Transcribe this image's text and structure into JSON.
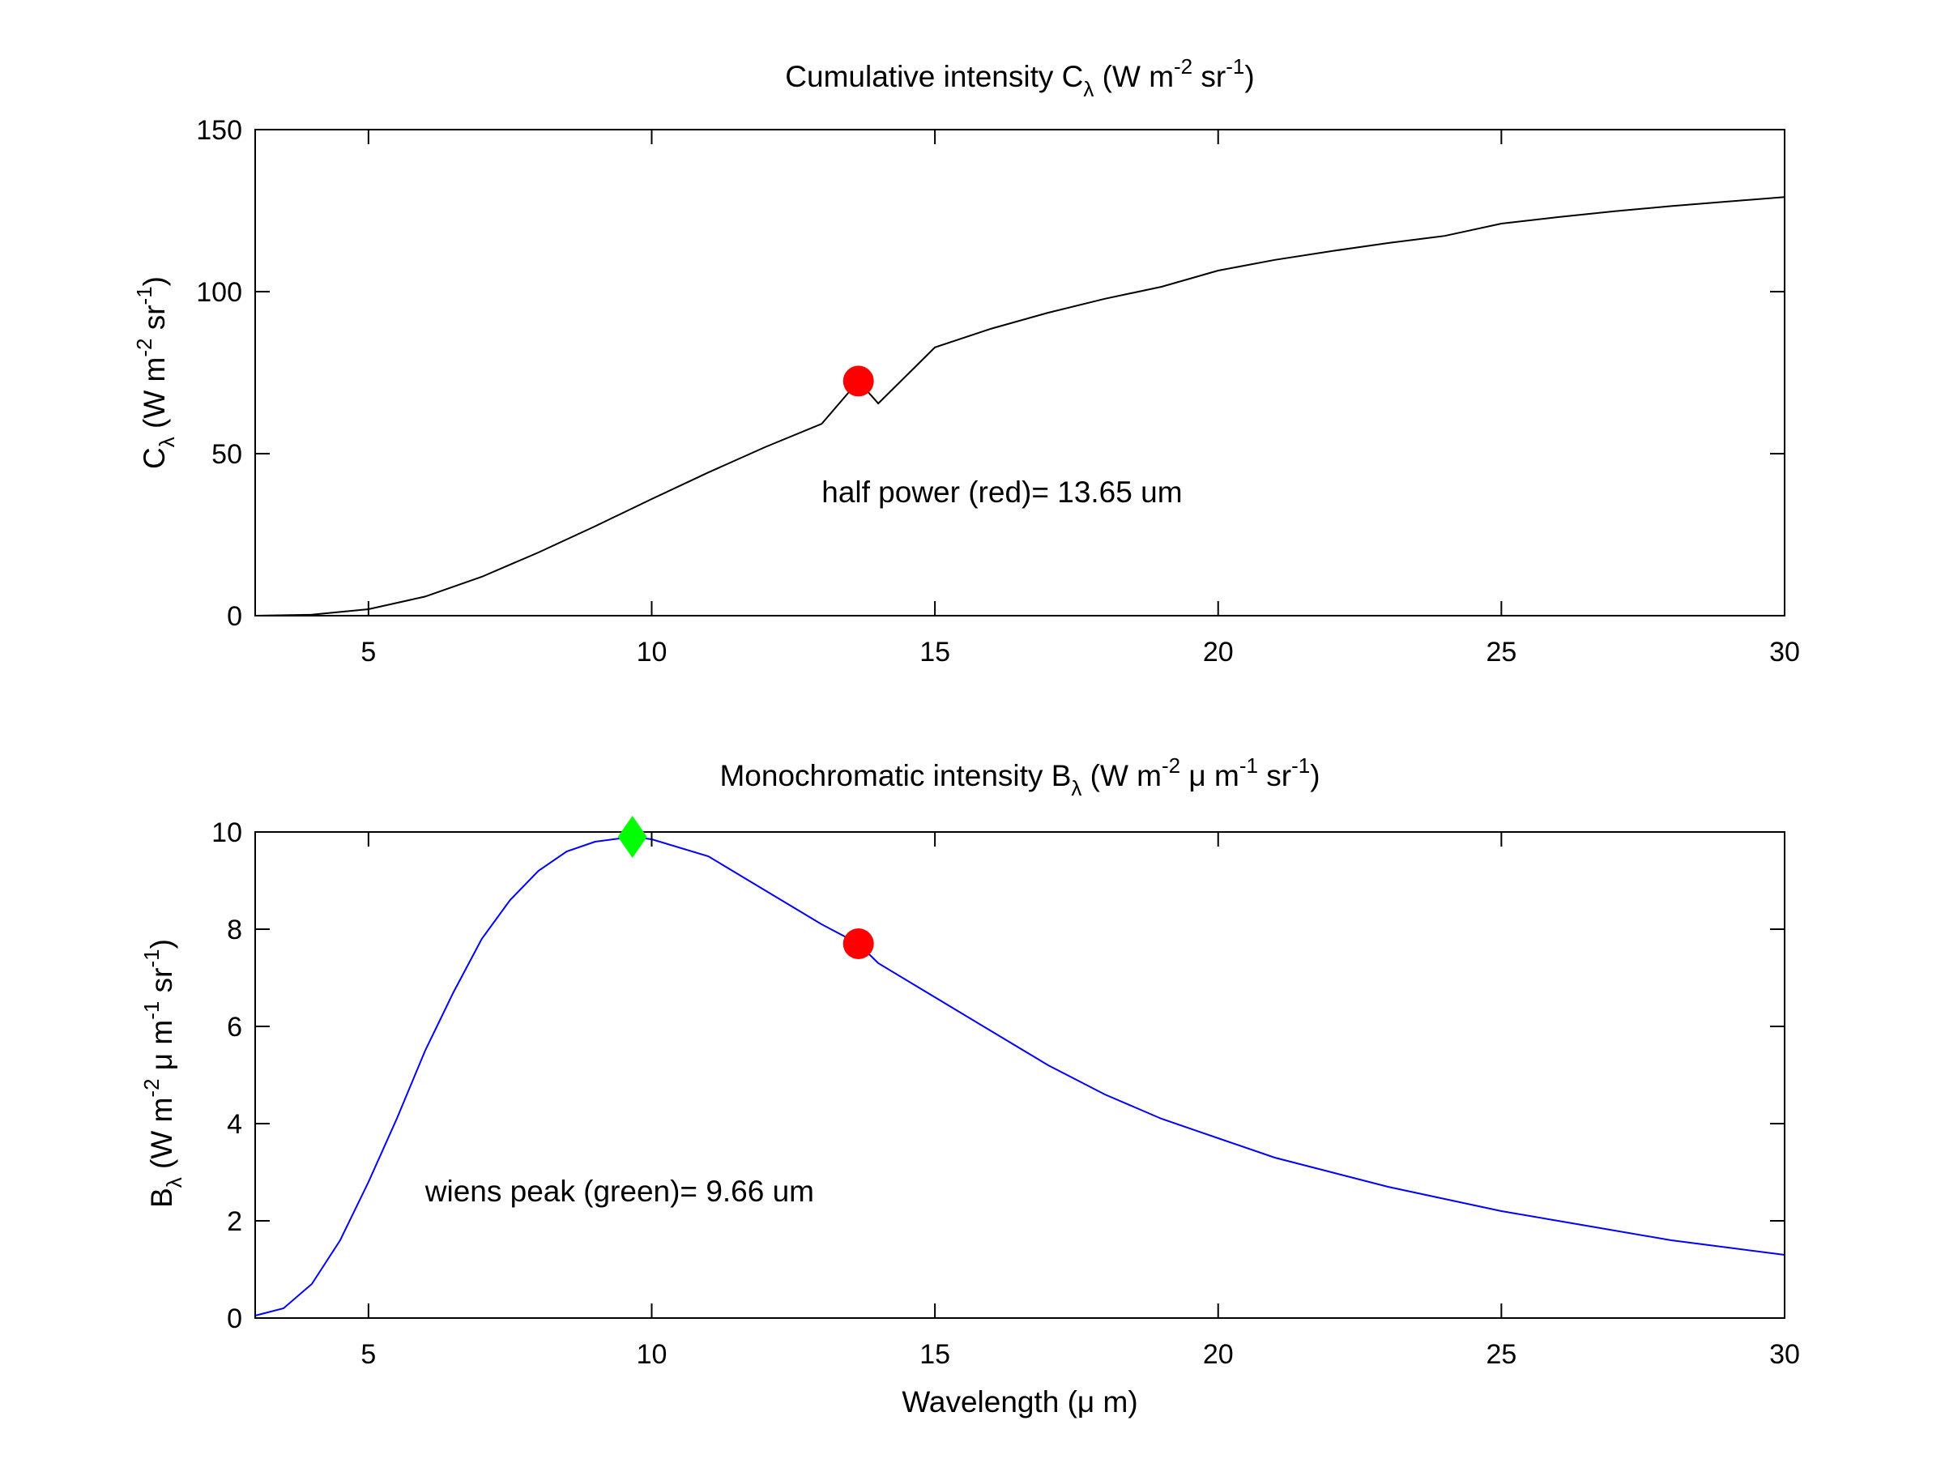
{
  "figure": {
    "background": "#ffffff"
  },
  "chart_data": [
    {
      "type": "line",
      "title": {
        "main": "Cumulative intensity C",
        "sub": "λ",
        "units_prefix": " (W m",
        "exp1": "-2",
        "units_mid": " sr",
        "exp2": "-1",
        "units_suffix": ")"
      },
      "ylabel": {
        "main": "C",
        "sub": "λ",
        "units_prefix": " (W m",
        "exp1": "-2",
        "units_mid": " sr",
        "exp2": "-1",
        "units_suffix": ")"
      },
      "xlabel": "",
      "xlim": [
        3,
        30
      ],
      "ylim": [
        0,
        150
      ],
      "xticks": [
        5,
        10,
        15,
        20,
        25,
        30
      ],
      "yticks": [
        0,
        50,
        100,
        150
      ],
      "grid": false,
      "series": [
        {
          "color": "#000000",
          "x": [
            3,
            4,
            5,
            6,
            7,
            8,
            9,
            10,
            11,
            12,
            13,
            13.65,
            14,
            15,
            16,
            17,
            18,
            19,
            20,
            21,
            22,
            23,
            24,
            25,
            26,
            27,
            28,
            29,
            30
          ],
          "y": [
            0,
            0.3,
            2.0,
            5.9,
            12.0,
            19.5,
            27.6,
            36.0,
            44.2,
            52.0,
            59.2,
            72.4,
            65.5,
            82.8,
            88.6,
            93.5,
            97.8,
            101.5,
            106.5,
            109.8,
            112.5,
            115.0,
            117.2,
            121.0,
            123.0,
            124.8,
            126.4,
            127.8,
            129.2
          ]
        }
      ],
      "markers": [
        {
          "name": "half power",
          "shape": "circle",
          "color": "#ff0000",
          "x": 13.65,
          "y": 72.4
        }
      ],
      "annotations": [
        {
          "text": "half power (red)= 13.65 um",
          "x": 13.0,
          "y": 35
        }
      ]
    },
    {
      "type": "line",
      "title": {
        "main": "Monochromatic intensity B",
        "sub": "λ",
        "units_prefix": " (W m",
        "exp1": "-2",
        "units_mid": " μ m",
        "exp2": "-1",
        "units_mid2": " sr",
        "exp3": "-1",
        "units_suffix": ")"
      },
      "ylabel": {
        "main": "B",
        "sub": "λ",
        "units_prefix": " (W m",
        "exp1": "-2",
        "units_mid": " μ m",
        "exp2": "-1",
        "units_mid2": " sr",
        "exp3": "-1",
        "units_suffix": ")"
      },
      "xlabel": "Wavelength (μ m)",
      "xlim": [
        3,
        30
      ],
      "ylim": [
        0,
        10
      ],
      "xticks": [
        5,
        10,
        15,
        20,
        25,
        30
      ],
      "yticks": [
        0,
        2,
        4,
        6,
        8,
        10
      ],
      "grid": false,
      "series": [
        {
          "color": "#0000ff",
          "x": [
            3,
            3.5,
            4,
            4.5,
            5,
            5.5,
            6,
            6.5,
            7,
            7.5,
            8,
            8.5,
            9,
            9.66,
            10,
            11,
            12,
            13,
            13.65,
            14,
            15,
            16,
            17,
            18,
            19,
            20,
            21,
            22,
            23,
            24,
            25,
            26,
            27,
            28,
            29,
            30
          ],
          "y": [
            0.05,
            0.2,
            0.7,
            1.6,
            2.8,
            4.1,
            5.5,
            6.7,
            7.8,
            8.6,
            9.2,
            9.6,
            9.8,
            9.9,
            9.85,
            9.5,
            8.8,
            8.1,
            7.7,
            7.3,
            6.6,
            5.9,
            5.2,
            4.6,
            4.1,
            3.7,
            3.3,
            3.0,
            2.7,
            2.45,
            2.2,
            2.0,
            1.8,
            1.6,
            1.45,
            1.3
          ]
        }
      ],
      "markers": [
        {
          "name": "wiens peak",
          "shape": "diamond",
          "color": "#00ff00",
          "x": 9.66,
          "y": 9.9
        },
        {
          "name": "half power",
          "shape": "circle",
          "color": "#ff0000",
          "x": 13.65,
          "y": 7.7
        }
      ],
      "annotations": [
        {
          "text": "wiens peak (green)=  9.66 um",
          "x": 6.0,
          "y": 2.4
        }
      ]
    }
  ]
}
